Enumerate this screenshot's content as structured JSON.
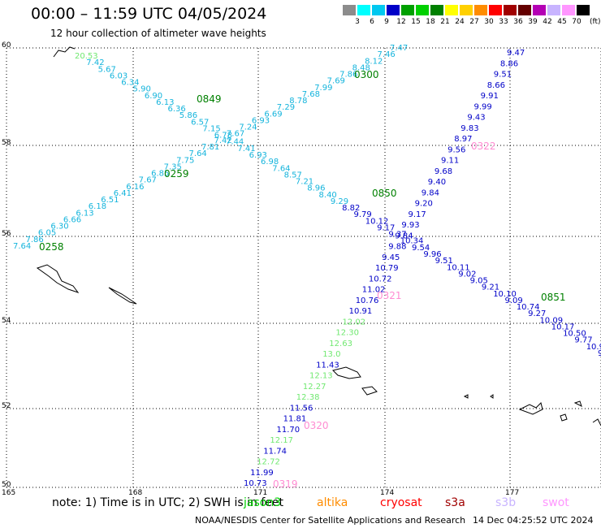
{
  "header": {
    "title": "00:00 – 11:59 UTC 04/05/2024",
    "subtitle": "12 hour collection of altimeter wave heights"
  },
  "legend": {
    "unit": "(ft)",
    "bins": [
      {
        "label": "3",
        "color": "#8c8c8c"
      },
      {
        "label": "6",
        "color": "#00ffff"
      },
      {
        "label": "9",
        "color": "#00c8f0"
      },
      {
        "label": "12",
        "color": "#0000c8"
      },
      {
        "label": "15",
        "color": "#00a000"
      },
      {
        "label": "18",
        "color": "#00d000"
      },
      {
        "label": "21",
        "color": "#008000"
      },
      {
        "label": "24",
        "color": "#ffff00"
      },
      {
        "label": "27",
        "color": "#ffd000"
      },
      {
        "label": "30",
        "color": "#ff8c00"
      },
      {
        "label": "33",
        "color": "#ff0000"
      },
      {
        "label": "36",
        "color": "#a00000"
      },
      {
        "label": "39",
        "color": "#640000"
      },
      {
        "label": "42",
        "color": "#b400b4"
      },
      {
        "label": "45",
        "color": "#c8b4ff"
      },
      {
        "label": "70",
        "color": "#ff96ff"
      },
      {
        "label": "",
        "color": "#000000"
      }
    ]
  },
  "map": {
    "lat_labels": [
      "60",
      "58",
      "56",
      "54",
      "52",
      "50"
    ],
    "lon_labels": [
      "165",
      "168",
      "171",
      "174",
      "177"
    ],
    "colors": {
      "cyan": "#14b4dc",
      "blue": "#0000c8",
      "green": "#70e870",
      "dkgreen": "#008000",
      "pink": "#ff8cd2"
    }
  },
  "tracks": [
    {
      "name": "track-0849-0850-0851",
      "color": "cyan",
      "values": [
        "20.53",
        "7.42",
        "5.67",
        "6.03",
        "6.34",
        "5.90",
        "6.90",
        "6.13",
        "6.36",
        "5.86",
        "6.57",
        "7.15",
        "6.78",
        "7.44",
        "7.41",
        "6.93",
        "6.98",
        "7.64",
        "8.57",
        "7.21",
        "8.96",
        "8.40",
        "9.29",
        "8.82",
        "9.79",
        "10.12",
        "9.17",
        "9.37",
        "10.34",
        "9.54",
        "9.96",
        "9.51",
        "10.11",
        "9.02",
        "9.05",
        "9.21",
        "10.10",
        "9.09",
        "10.74",
        "9.27",
        "10.09",
        "10.17",
        "10.50",
        "9.77",
        "10.9",
        "9"
      ]
    },
    {
      "name": "track-0258-0259-0300",
      "color": "cyan",
      "values": [
        "7.64",
        "7.86",
        "6.05",
        "6.30",
        "6.66",
        "6.13",
        "6.18",
        "6.51",
        "6.41",
        "6.16",
        "7.67",
        "6.85",
        "7.35",
        "7.75",
        "7.64",
        "7.81",
        "7.42",
        "7.67",
        "7.24",
        "6.93",
        "6.69",
        "7.29",
        "8.78",
        "7.68",
        "7.99",
        "7.69",
        "7.86",
        "8.48",
        "8.12",
        "7.46",
        "7.47"
      ]
    },
    {
      "name": "track-0319-0322",
      "color": "blue",
      "values": [
        "10.73",
        "11.99",
        "12.72",
        "11.74",
        "12.17",
        "11.70",
        "11.81",
        "11.56",
        "12.38",
        "12.27",
        "12.13",
        "11.43",
        "13.0",
        "12.63",
        "12.30",
        "12.02",
        "10.91",
        "10.76",
        "11.02",
        "10.72",
        "10.79",
        "9.45",
        "9.88",
        "9.84",
        "9.93",
        "9.17",
        "9.20",
        "9.84",
        "9.40",
        "9.68",
        "9.11",
        "9.56",
        "8.97",
        "9.83",
        "9.43",
        "9.99",
        "9.91",
        "8.66",
        "9.51",
        "8.86",
        "9.47"
      ]
    }
  ],
  "time_labels": [
    "0849",
    "0259",
    "0258",
    "0300",
    "0850",
    "0851",
    "0321",
    "0322",
    "0320",
    "0319"
  ],
  "note": "note: 1) Time is in UTC; 2) SWH is in feet",
  "satellites": [
    {
      "label": "jason3",
      "color": "#00d000"
    },
    {
      "label": "altika",
      "color": "#ff8c00"
    },
    {
      "label": "cryosat",
      "color": "#ff0000"
    },
    {
      "label": "s3a",
      "color": "#a00000"
    },
    {
      "label": "s3b",
      "color": "#c8b4ff"
    },
    {
      "label": "swot",
      "color": "#ff96ff"
    }
  ],
  "credit": "NOAA/NESDIS Center for Satellite Applications and Research",
  "timestamp": "14 Dec 04:25:52 UTC 2024"
}
